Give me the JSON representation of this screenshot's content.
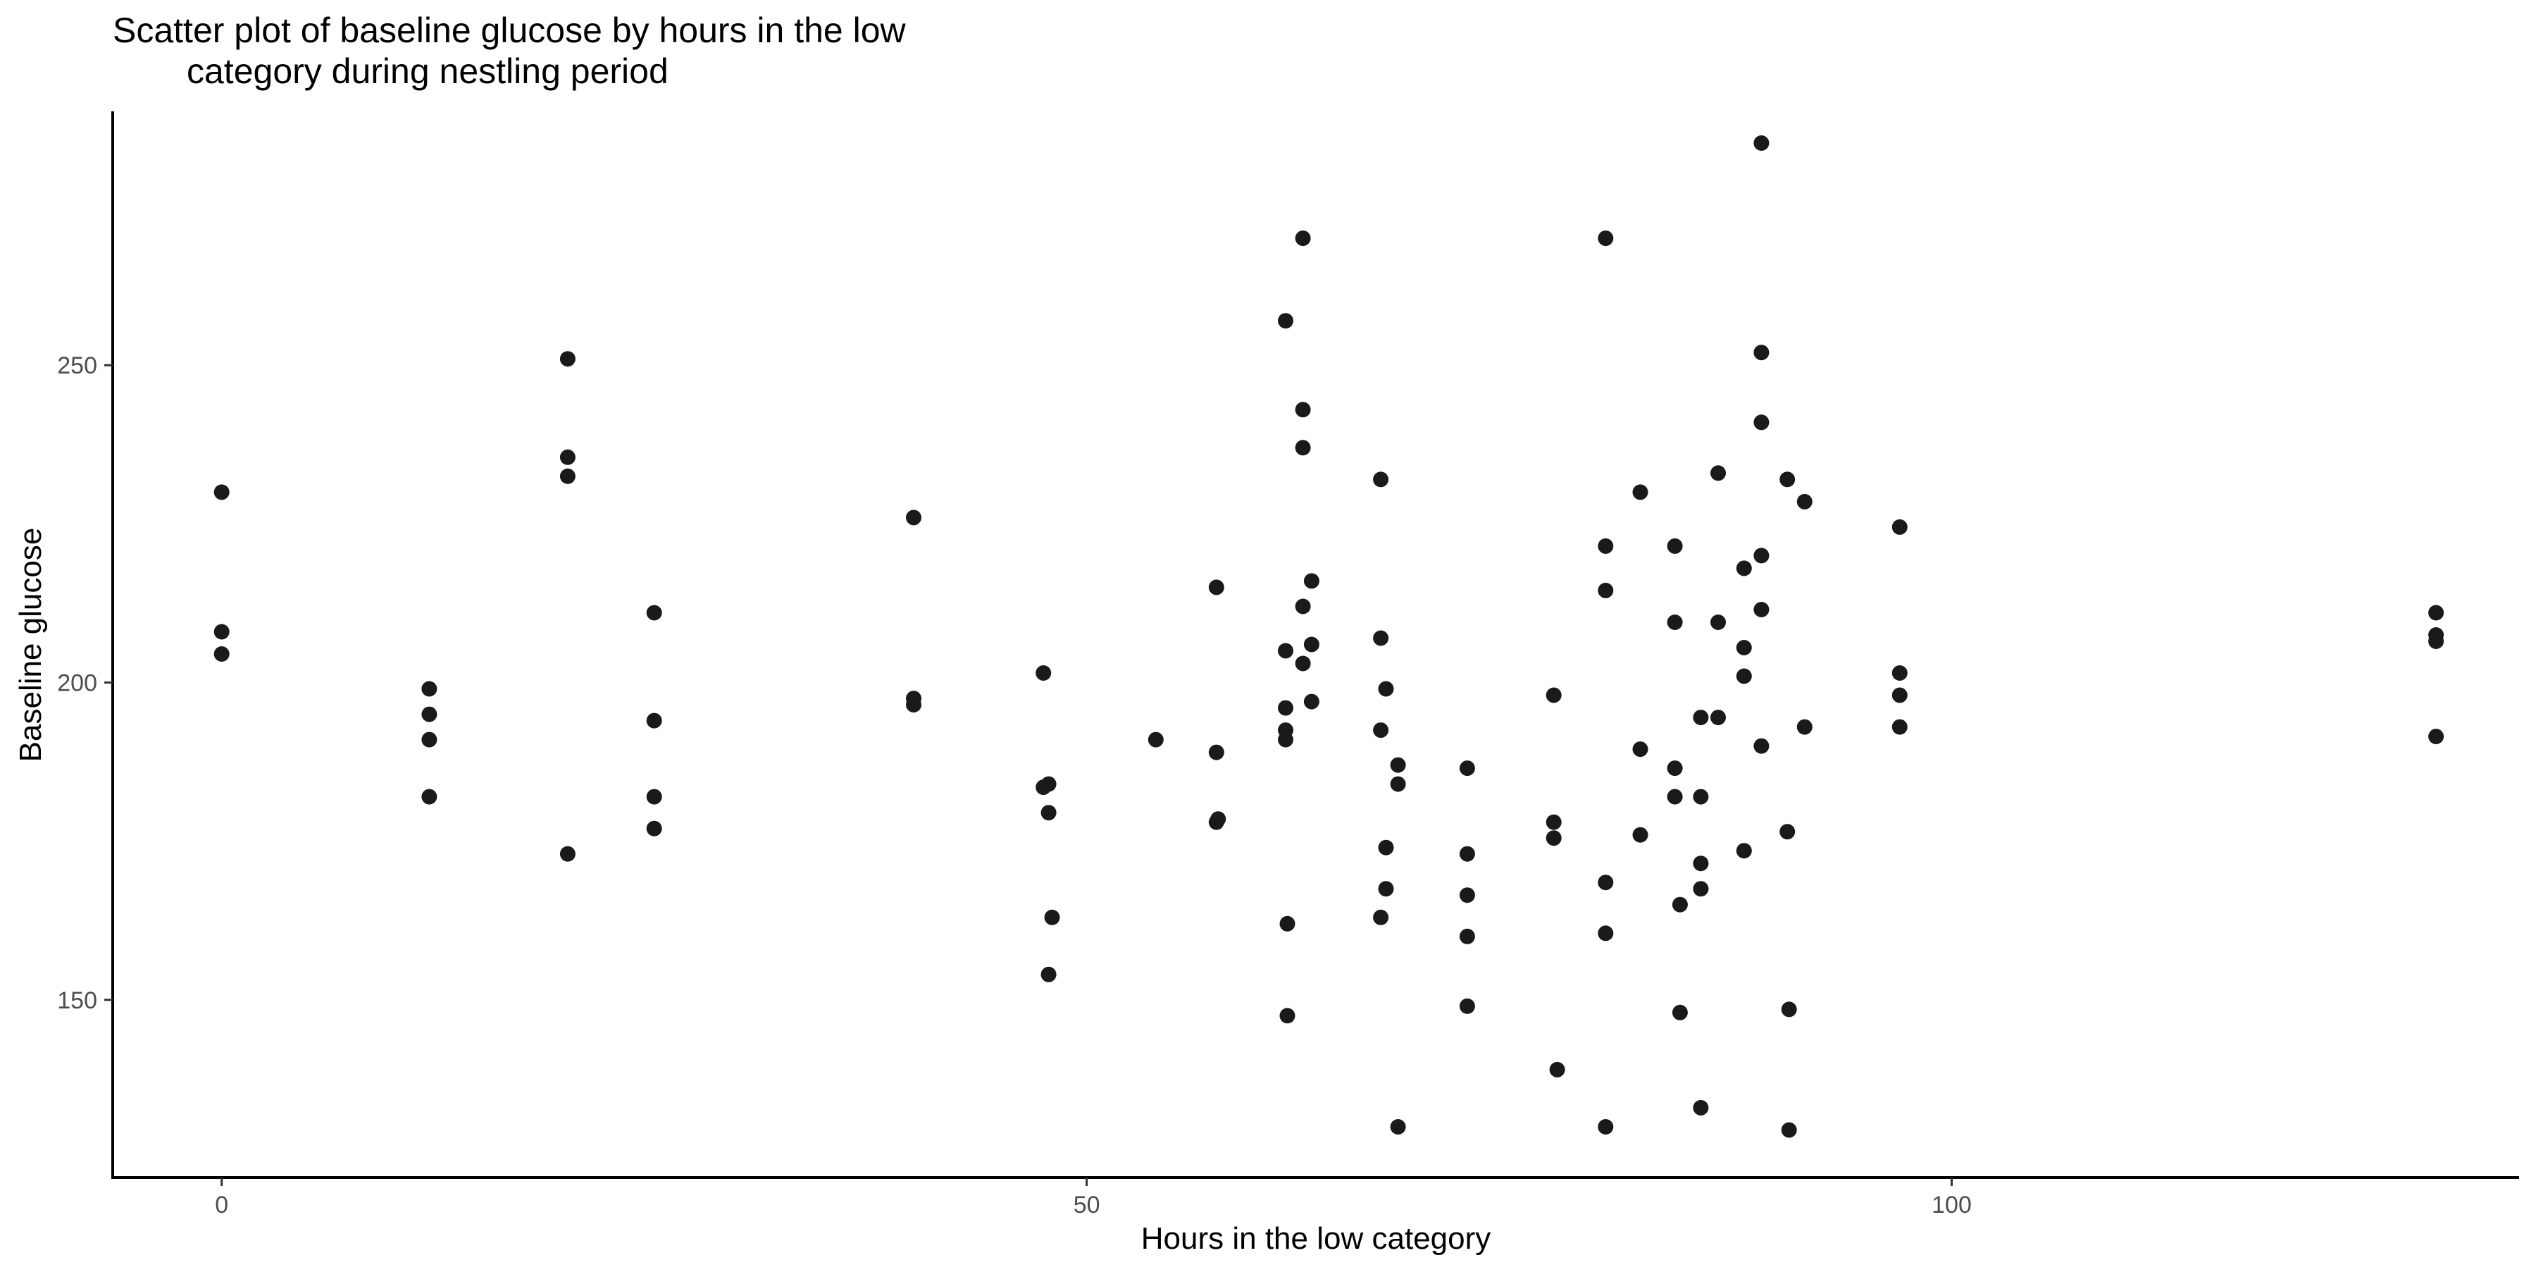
{
  "chart_data": {
    "type": "scatter",
    "title_lines": [
      "Scatter plot of baseline glucose by hours in the low",
      "category during nestling period"
    ],
    "xlabel": "Hours in the low category",
    "ylabel": "Baseline glucose",
    "xlim": [
      -6.3,
      132.8
    ],
    "ylim": [
      122,
      290
    ],
    "xticks": [
      0,
      50,
      100
    ],
    "yticks": [
      150,
      200,
      250
    ],
    "xtick_labels": [
      "0",
      "50",
      "100"
    ],
    "ytick_labels": [
      "150",
      "200",
      "250"
    ],
    "grid": false,
    "legend": "none",
    "point_color": "#1a1a1a",
    "axis_color": "#000000",
    "points": [
      {
        "x": 0,
        "y": 230
      },
      {
        "x": 0,
        "y": 208
      },
      {
        "x": 0,
        "y": 204.5
      },
      {
        "x": 12,
        "y": 199
      },
      {
        "x": 12,
        "y": 195
      },
      {
        "x": 12,
        "y": 191
      },
      {
        "x": 12,
        "y": 182
      },
      {
        "x": 20,
        "y": 251
      },
      {
        "x": 20,
        "y": 235.5
      },
      {
        "x": 20,
        "y": 232.5
      },
      {
        "x": 20,
        "y": 173
      },
      {
        "x": 25,
        "y": 211
      },
      {
        "x": 25,
        "y": 194
      },
      {
        "x": 25,
        "y": 182
      },
      {
        "x": 25,
        "y": 177
      },
      {
        "x": 40,
        "y": 226
      },
      {
        "x": 40,
        "y": 197.5
      },
      {
        "x": 40,
        "y": 196.5
      },
      {
        "x": 47.5,
        "y": 201.5
      },
      {
        "x": 47.5,
        "y": 183.5
      },
      {
        "x": 47.8,
        "y": 184
      },
      {
        "x": 47.8,
        "y": 179.5
      },
      {
        "x": 48,
        "y": 163
      },
      {
        "x": 47.8,
        "y": 154
      },
      {
        "x": 54,
        "y": 191
      },
      {
        "x": 57.5,
        "y": 215
      },
      {
        "x": 57.5,
        "y": 189
      },
      {
        "x": 57.5,
        "y": 178
      },
      {
        "x": 57.6,
        "y": 178.5
      },
      {
        "x": 61.5,
        "y": 257
      },
      {
        "x": 61.5,
        "y": 205
      },
      {
        "x": 61.5,
        "y": 196
      },
      {
        "x": 61.5,
        "y": 192.5
      },
      {
        "x": 61.5,
        "y": 191
      },
      {
        "x": 61.6,
        "y": 162
      },
      {
        "x": 61.6,
        "y": 147.5
      },
      {
        "x": 62.5,
        "y": 270
      },
      {
        "x": 62.5,
        "y": 243
      },
      {
        "x": 62.5,
        "y": 237
      },
      {
        "x": 62.5,
        "y": 212
      },
      {
        "x": 62.5,
        "y": 203
      },
      {
        "x": 63,
        "y": 216
      },
      {
        "x": 63,
        "y": 206
      },
      {
        "x": 63,
        "y": 197
      },
      {
        "x": 67,
        "y": 232
      },
      {
        "x": 67,
        "y": 207
      },
      {
        "x": 67,
        "y": 192.5
      },
      {
        "x": 67,
        "y": 163
      },
      {
        "x": 67.3,
        "y": 199
      },
      {
        "x": 67.3,
        "y": 174
      },
      {
        "x": 67.3,
        "y": 167.5
      },
      {
        "x": 68,
        "y": 187
      },
      {
        "x": 68,
        "y": 184
      },
      {
        "x": 68,
        "y": 130
      },
      {
        "x": 72,
        "y": 186.5
      },
      {
        "x": 72,
        "y": 173
      },
      {
        "x": 72,
        "y": 166.5
      },
      {
        "x": 72,
        "y": 160
      },
      {
        "x": 72,
        "y": 149
      },
      {
        "x": 77,
        "y": 198
      },
      {
        "x": 77,
        "y": 178
      },
      {
        "x": 77,
        "y": 175.5
      },
      {
        "x": 77.2,
        "y": 139
      },
      {
        "x": 80,
        "y": 270
      },
      {
        "x": 80,
        "y": 221.5
      },
      {
        "x": 80,
        "y": 214.5
      },
      {
        "x": 80,
        "y": 168.5
      },
      {
        "x": 80,
        "y": 160.5
      },
      {
        "x": 80,
        "y": 130
      },
      {
        "x": 82,
        "y": 230
      },
      {
        "x": 82,
        "y": 189.5
      },
      {
        "x": 82,
        "y": 176
      },
      {
        "x": 84,
        "y": 221.5
      },
      {
        "x": 84,
        "y": 209.5
      },
      {
        "x": 84,
        "y": 186.5
      },
      {
        "x": 84,
        "y": 182
      },
      {
        "x": 84.3,
        "y": 165
      },
      {
        "x": 84.3,
        "y": 148
      },
      {
        "x": 85.5,
        "y": 194.5
      },
      {
        "x": 85.5,
        "y": 182
      },
      {
        "x": 85.5,
        "y": 171.5
      },
      {
        "x": 85.5,
        "y": 167.5
      },
      {
        "x": 85.5,
        "y": 133
      },
      {
        "x": 86.5,
        "y": 233
      },
      {
        "x": 86.5,
        "y": 209.5
      },
      {
        "x": 86.5,
        "y": 194.5
      },
      {
        "x": 88,
        "y": 218
      },
      {
        "x": 88,
        "y": 205.5
      },
      {
        "x": 88,
        "y": 201
      },
      {
        "x": 88,
        "y": 173.5
      },
      {
        "x": 89,
        "y": 285
      },
      {
        "x": 89,
        "y": 252
      },
      {
        "x": 89,
        "y": 241
      },
      {
        "x": 89,
        "y": 220
      },
      {
        "x": 89,
        "y": 211.5
      },
      {
        "x": 89,
        "y": 190
      },
      {
        "x": 90.5,
        "y": 232
      },
      {
        "x": 90.5,
        "y": 176.5
      },
      {
        "x": 90.6,
        "y": 148.5
      },
      {
        "x": 90.6,
        "y": 129.5
      },
      {
        "x": 91.5,
        "y": 228.5
      },
      {
        "x": 91.5,
        "y": 193
      },
      {
        "x": 97,
        "y": 224.5
      },
      {
        "x": 97,
        "y": 201.5
      },
      {
        "x": 97,
        "y": 198
      },
      {
        "x": 97,
        "y": 193
      },
      {
        "x": 128,
        "y": 211
      },
      {
        "x": 128,
        "y": 207.5
      },
      {
        "x": 128,
        "y": 206.5
      },
      {
        "x": 128,
        "y": 191.5
      }
    ]
  }
}
